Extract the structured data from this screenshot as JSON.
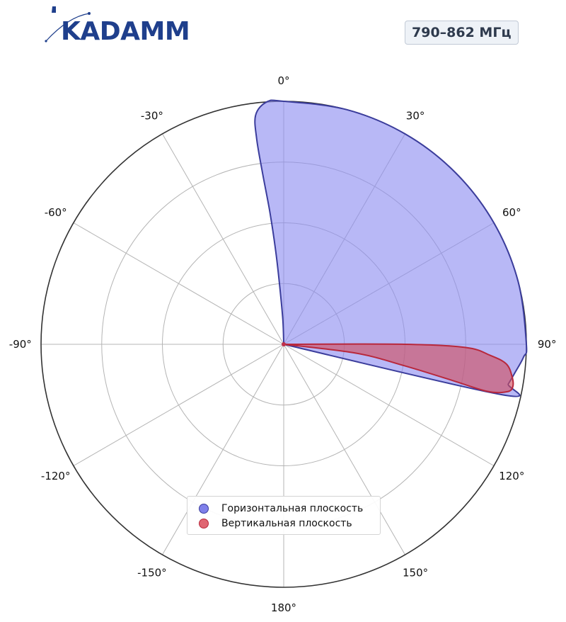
{
  "logo": {
    "text": "KADAMM"
  },
  "band_badge": "790–862 МГц",
  "chart_data": {
    "type": "polar-area",
    "title": "",
    "theta_unit": "deg",
    "theta_ticks": [
      0,
      30,
      60,
      90,
      120,
      150,
      180,
      -150,
      -120,
      -90,
      -60,
      -30
    ],
    "theta_tick_labels": [
      "0°",
      "30°",
      "60°",
      "90°",
      "120°",
      "150°",
      "180°",
      "-150°",
      "-120°",
      "-90°",
      "-60°",
      "-30°"
    ],
    "r_lim": [
      0,
      1
    ],
    "r_grid": [
      0.25,
      0.5,
      0.75,
      1.0
    ],
    "grid": true,
    "legend_position": "bottom-center",
    "colors": {
      "horizontal_fill": "#8c8cf0",
      "horizontal_line": "#3b3d9c",
      "vertical_fill": "#d04d5e",
      "vertical_line": "#b8283c"
    },
    "series": [
      {
        "name": "Горизонтальная плоскость",
        "key": "horizontal",
        "points": [
          [
            0,
            0
          ],
          [
            -2,
            0.1
          ],
          [
            -4,
            0.25
          ],
          [
            -5,
            0.4
          ],
          [
            -6,
            0.55
          ],
          [
            -7,
            0.7
          ],
          [
            -7.5,
            0.85
          ],
          [
            -7,
            0.95
          ],
          [
            -4,
            1.0
          ],
          [
            0,
            1.0
          ],
          [
            15,
            1.0
          ],
          [
            30,
            1.0
          ],
          [
            45,
            1.0
          ],
          [
            60,
            1.0
          ],
          [
            75,
            1.0
          ],
          [
            90,
            1.0
          ],
          [
            93,
            0.99
          ],
          [
            97,
            0.96
          ],
          [
            100,
            0.94
          ],
          [
            103,
            0.92
          ],
          [
            90,
            0
          ]
        ]
      },
      {
        "name": "Вертикальная плоскость",
        "key": "vertical",
        "points": [
          [
            90,
            0
          ],
          [
            90,
            0.5
          ],
          [
            91,
            0.75
          ],
          [
            93,
            0.85
          ],
          [
            95,
            0.92
          ],
          [
            98,
            0.95
          ],
          [
            100.5,
            0.96
          ],
          [
            102,
            0.94
          ],
          [
            103,
            0.86
          ],
          [
            102,
            0.7
          ],
          [
            100,
            0.5
          ],
          [
            97,
            0.3
          ],
          [
            90,
            0
          ]
        ]
      }
    ]
  }
}
